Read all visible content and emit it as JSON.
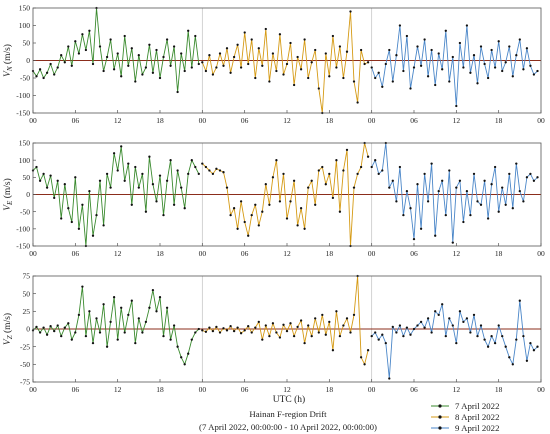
{
  "figure": {
    "xlabel": "UTC (h)",
    "title_line1": "Hainan F-region Drift",
    "title_line2": "(7 April 2022, 00:00:00 - 10 April 2022, 00:00:00)"
  },
  "chart_data": [
    {
      "type": "line",
      "panel": "top",
      "ylabel": "V_N (m/s)",
      "ylim": [
        -150,
        150
      ],
      "yticks": [
        -150,
        -100,
        -50,
        0,
        50,
        100,
        150
      ],
      "xlim": [
        0,
        72
      ],
      "xtick_values": [
        0,
        6,
        12,
        18,
        24,
        30,
        36,
        42,
        48,
        54,
        60,
        66,
        72
      ],
      "xtick_labels": [
        "00",
        "06",
        "12",
        "18",
        "00",
        "06",
        "12",
        "18",
        "00",
        "06",
        "12",
        "18",
        "00"
      ],
      "legend": "bottom-right",
      "series": [
        {
          "name": "7 April 2022",
          "color": "#3a8a2e",
          "x": [
            0,
            0.5,
            1,
            1.5,
            2,
            2.5,
            3,
            3.5,
            4,
            4.5,
            5,
            5.5,
            6,
            6.5,
            7,
            7.5,
            8,
            8.5,
            9,
            9.5,
            10,
            10.5,
            11,
            11.5,
            12,
            12.5,
            13,
            13.5,
            14,
            14.5,
            15,
            15.5,
            16,
            16.5,
            17,
            17.5,
            18,
            18.5,
            19,
            19.5,
            20,
            20.5,
            21,
            21.5,
            22,
            22.5,
            23,
            23.5
          ],
          "y": [
            -30,
            -45,
            -25,
            -50,
            -35,
            -10,
            -40,
            -20,
            15,
            -5,
            40,
            -15,
            55,
            20,
            75,
            30,
            85,
            -10,
            150,
            40,
            -30,
            10,
            60,
            -25,
            20,
            -45,
            70,
            -15,
            35,
            -60,
            15,
            -40,
            -20,
            45,
            -35,
            30,
            -50,
            10,
            60,
            -15,
            40,
            -90,
            20,
            -30,
            85,
            -20,
            70,
            -10
          ]
        },
        {
          "name": "8 April 2022",
          "color": "#d59a14",
          "x": [
            24,
            24.5,
            25,
            25.5,
            26,
            26.5,
            27,
            27.5,
            28,
            28.5,
            29,
            29.5,
            30,
            30.5,
            31,
            31.5,
            32,
            32.5,
            33,
            33.5,
            34,
            34.5,
            35,
            35.5,
            36,
            36.5,
            37,
            37.5,
            38,
            38.5,
            39,
            39.5,
            40,
            40.5,
            41,
            41.5,
            42,
            42.5,
            43,
            43.5,
            44,
            44.5,
            45,
            45.5,
            46,
            46.5,
            47,
            47.5
          ],
          "y": [
            -5,
            -30,
            15,
            -40,
            -20,
            20,
            -15,
            35,
            -35,
            10,
            45,
            -20,
            80,
            -10,
            60,
            -50,
            35,
            -15,
            90,
            -60,
            20,
            -30,
            75,
            -40,
            -10,
            50,
            -70,
            10,
            -25,
            60,
            -50,
            -5,
            30,
            -80,
            -150,
            20,
            -45,
            70,
            -20,
            40,
            -50,
            25,
            140,
            -60,
            -120,
            30,
            -10,
            -5
          ]
        },
        {
          "name": "9 April 2022",
          "color": "#4a86c8",
          "x": [
            48,
            48.5,
            49,
            49.5,
            50,
            50.5,
            51,
            51.5,
            52,
            52.5,
            53,
            53.5,
            54,
            54.5,
            55,
            55.5,
            56,
            56.5,
            57,
            57.5,
            58,
            58.5,
            59,
            59.5,
            60,
            60.5,
            61,
            61.5,
            62,
            62.5,
            63,
            63.5,
            64,
            64.5,
            65,
            65.5,
            66,
            66.5,
            67,
            67.5,
            68,
            68.5,
            69,
            69.5,
            70,
            70.5,
            71,
            71.5
          ],
          "y": [
            -20,
            -50,
            -35,
            -75,
            -10,
            30,
            -60,
            15,
            100,
            -30,
            70,
            -80,
            -20,
            40,
            -15,
            60,
            -45,
            30,
            -70,
            20,
            -25,
            85,
            -60,
            10,
            -130,
            50,
            -20,
            100,
            -35,
            15,
            -65,
            40,
            -10,
            -50,
            30,
            -20,
            55,
            -30,
            -5,
            40,
            -45,
            15,
            60,
            -25,
            35,
            -15,
            -40,
            -30
          ]
        }
      ]
    },
    {
      "type": "line",
      "panel": "middle",
      "ylabel": "V_E (m/s)",
      "ylim": [
        -150,
        150
      ],
      "yticks": [
        -150,
        -100,
        -50,
        0,
        50,
        100,
        150
      ],
      "xlim": [
        0,
        72
      ],
      "xtick_values": [
        0,
        6,
        12,
        18,
        24,
        30,
        36,
        42,
        48,
        54,
        60,
        66,
        72
      ],
      "xtick_labels": [
        "00",
        "06",
        "12",
        "18",
        "00",
        "06",
        "12",
        "18",
        "00",
        "06",
        "12",
        "18",
        "00"
      ],
      "series": [
        {
          "name": "7 April 2022",
          "color": "#3a8a2e",
          "x": [
            0,
            0.5,
            1,
            1.5,
            2,
            2.5,
            3,
            3.5,
            4,
            4.5,
            5,
            5.5,
            6,
            6.5,
            7,
            7.5,
            8,
            8.5,
            9,
            9.5,
            10,
            10.5,
            11,
            11.5,
            12,
            12.5,
            13,
            13.5,
            14,
            14.5,
            15,
            15.5,
            16,
            16.5,
            17,
            17.5,
            18,
            18.5,
            19,
            19.5,
            20,
            20.5,
            21,
            21.5,
            22,
            22.5,
            23,
            23.5
          ],
          "y": [
            70,
            80,
            40,
            60,
            20,
            55,
            -10,
            40,
            -70,
            30,
            -40,
            -80,
            50,
            -100,
            -30,
            -150,
            10,
            -120,
            -60,
            40,
            -90,
            60,
            20,
            120,
            70,
            140,
            40,
            90,
            -30,
            80,
            20,
            60,
            -50,
            110,
            30,
            -20,
            55,
            -60,
            40,
            100,
            -30,
            70,
            20,
            -40,
            60,
            100,
            80,
            60
          ]
        },
        {
          "name": "8 April 2022",
          "color": "#d59a14",
          "x": [
            24,
            24.5,
            25,
            25.5,
            26,
            26.5,
            27,
            27.5,
            28,
            28.5,
            29,
            29.5,
            30,
            30.5,
            31,
            31.5,
            32,
            32.5,
            33,
            33.5,
            34,
            34.5,
            35,
            35.5,
            36,
            36.5,
            37,
            37.5,
            38,
            38.5,
            39,
            39.5,
            40,
            40.5,
            41,
            41.5,
            42,
            42.5,
            43,
            43.5,
            44,
            44.5,
            45,
            45.5,
            46,
            46.5,
            47,
            47.5
          ],
          "y": [
            90,
            80,
            70,
            60,
            75,
            70,
            65,
            20,
            -60,
            -40,
            -100,
            -20,
            -80,
            -120,
            -60,
            -30,
            -90,
            -50,
            30,
            -30,
            50,
            100,
            -20,
            60,
            -70,
            -20,
            40,
            -90,
            -40,
            -100,
            20,
            40,
            -30,
            70,
            80,
            30,
            60,
            -10,
            100,
            -50,
            70,
            130,
            -150,
            20,
            60,
            80,
            150,
            110
          ]
        },
        {
          "name": "9 April 2022",
          "color": "#4a86c8",
          "x": [
            48,
            48.5,
            49,
            49.5,
            50,
            50.5,
            51,
            51.5,
            52,
            52.5,
            53,
            53.5,
            54,
            54.5,
            55,
            55.5,
            56,
            56.5,
            57,
            57.5,
            58,
            58.5,
            59,
            59.5,
            60,
            60.5,
            61,
            61.5,
            62,
            62.5,
            63,
            63.5,
            64,
            64.5,
            65,
            65.5,
            66,
            66.5,
            67,
            67.5,
            68,
            68.5,
            69,
            69.5,
            70,
            70.5,
            71,
            71.5
          ],
          "y": [
            80,
            100,
            60,
            70,
            150,
            20,
            40,
            -20,
            80,
            -60,
            10,
            -40,
            -130,
            30,
            -100,
            60,
            -20,
            90,
            -120,
            10,
            40,
            -60,
            70,
            -140,
            20,
            40,
            -80,
            10,
            -60,
            60,
            -20,
            -30,
            40,
            -70,
            30,
            80,
            -50,
            20,
            -30,
            60,
            -40,
            90,
            10,
            -20,
            50,
            60,
            40,
            50
          ]
        }
      ]
    },
    {
      "type": "line",
      "panel": "bottom",
      "ylabel": "V_Z (m/s)",
      "ylim": [
        -75,
        75
      ],
      "yticks": [
        -75,
        -50,
        -25,
        0,
        25,
        50,
        75
      ],
      "xlim": [
        0,
        72
      ],
      "xtick_values": [
        0,
        6,
        12,
        18,
        24,
        30,
        36,
        42,
        48,
        54,
        60,
        66,
        72
      ],
      "xtick_labels": [
        "00",
        "06",
        "12",
        "18",
        "00",
        "06",
        "12",
        "18",
        "00",
        "06",
        "12",
        "18",
        "00"
      ],
      "series": [
        {
          "name": "7 April 2022",
          "color": "#3a8a2e",
          "x": [
            0,
            0.5,
            1,
            1.5,
            2,
            2.5,
            3,
            3.5,
            4,
            4.5,
            5,
            5.5,
            6,
            6.5,
            7,
            7.5,
            8,
            8.5,
            9,
            9.5,
            10,
            10.5,
            11,
            11.5,
            12,
            12.5,
            13,
            13.5,
            14,
            14.5,
            15,
            15.5,
            16,
            16.5,
            17,
            17.5,
            18,
            18.5,
            19,
            19.5,
            20,
            20.5,
            21,
            21.5,
            22,
            22.5,
            23,
            23.5
          ],
          "y": [
            -2,
            3,
            -5,
            2,
            -8,
            4,
            -3,
            5,
            -10,
            2,
            8,
            -15,
            -5,
            20,
            60,
            -10,
            25,
            -20,
            15,
            -5,
            35,
            -25,
            10,
            45,
            -15,
            30,
            -5,
            20,
            40,
            -20,
            15,
            -5,
            10,
            30,
            55,
            25,
            45,
            -10,
            30,
            -15,
            5,
            -25,
            -40,
            -50,
            -35,
            -15,
            -5,
            0
          ]
        },
        {
          "name": "8 April 2022",
          "color": "#d59a14",
          "x": [
            24,
            24.5,
            25,
            25.5,
            26,
            26.5,
            27,
            27.5,
            28,
            28.5,
            29,
            29.5,
            30,
            30.5,
            31,
            31.5,
            32,
            32.5,
            33,
            33.5,
            34,
            34.5,
            35,
            35.5,
            36,
            36.5,
            37,
            37.5,
            38,
            38.5,
            39,
            39.5,
            40,
            40.5,
            41,
            41.5,
            42,
            42.5,
            43,
            43.5,
            44,
            44.5,
            45,
            45.5,
            46,
            46.5,
            47,
            47.5
          ],
          "y": [
            -2,
            -4,
            2,
            -3,
            3,
            -5,
            1,
            -2,
            4,
            -3,
            2,
            -6,
            -2,
            4,
            -5,
            2,
            10,
            -15,
            5,
            -10,
            8,
            -5,
            -12,
            6,
            -3,
            8,
            -10,
            3,
            12,
            -20,
            5,
            -10,
            15,
            -5,
            20,
            -8,
            10,
            -30,
            25,
            -10,
            5,
            15,
            -5,
            20,
            75,
            -40,
            -50,
            -30
          ]
        },
        {
          "name": "9 April 2022",
          "color": "#4a86c8",
          "x": [
            48,
            48.5,
            49,
            49.5,
            50,
            50.5,
            51,
            51.5,
            52,
            52.5,
            53,
            53.5,
            54,
            54.5,
            55,
            55.5,
            56,
            56.5,
            57,
            57.5,
            58,
            58.5,
            59,
            59.5,
            60,
            60.5,
            61,
            61.5,
            62,
            62.5,
            63,
            63.5,
            64,
            64.5,
            65,
            65.5,
            66,
            66.5,
            67,
            67.5,
            68,
            68.5,
            69,
            69.5,
            70,
            70.5,
            71,
            71.5
          ],
          "y": [
            -10,
            -5,
            -15,
            -8,
            -20,
            -70,
            3,
            -5,
            5,
            -10,
            2,
            -8,
            0,
            5,
            10,
            2,
            15,
            -5,
            25,
            20,
            35,
            -10,
            15,
            5,
            -20,
            25,
            10,
            15,
            -5,
            20,
            -10,
            5,
            -15,
            -25,
            -10,
            -20,
            5,
            -10,
            -25,
            -40,
            -50,
            -15,
            40,
            -10,
            -45,
            -20,
            -30,
            -25
          ]
        }
      ]
    }
  ]
}
